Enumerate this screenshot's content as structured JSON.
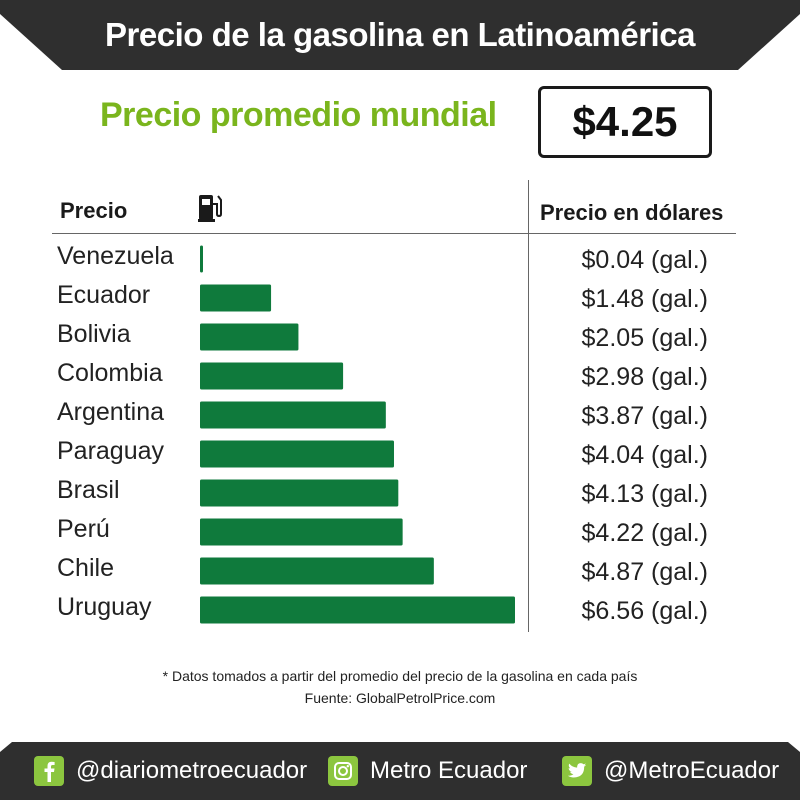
{
  "header": {
    "title": "Precio de la gasolina en Latinoamérica"
  },
  "average": {
    "label": "Precio promedio mundial",
    "value": "$4.25"
  },
  "table": {
    "left_header": "Precio",
    "right_header": "Precio en dólares",
    "unit_suffix": " (gal.)"
  },
  "chart_data": {
    "type": "bar",
    "orientation": "horizontal",
    "categories": [
      "Venezuela",
      "Ecuador",
      "Bolivia",
      "Colombia",
      "Argentina",
      "Paraguay",
      "Brasil",
      "Perú",
      "Chile",
      "Uruguay"
    ],
    "values": [
      0.04,
      1.48,
      2.05,
      2.98,
      3.87,
      4.04,
      4.13,
      4.22,
      4.87,
      6.56
    ],
    "value_labels": [
      "$0.04 (gal.)",
      "$1.48 (gal.)",
      "$2.05 (gal.)",
      "$2.98 (gal.)",
      "$3.87 (gal.)",
      "$4.04 (gal.)",
      "$4.13 (gal.)",
      "$4.22 (gal.)",
      "$4.87 (gal.)",
      "$6.56 (gal.)"
    ],
    "bar_color": "#0f7a3c",
    "grid": false
  },
  "notes": {
    "line1": "* Datos tomados a partir del promedio del precio de la gasolina en cada país",
    "line2": "Fuente: GlobalPetrolPrice.com"
  },
  "footer": {
    "facebook": "@diariometroecuador",
    "instagram": "Metro Ecuador",
    "twitter": "@MetroEcuador"
  },
  "colors": {
    "banner": "#2f2f2f",
    "accent_green": "#7ab51d",
    "icon_green": "#8cc63f"
  }
}
